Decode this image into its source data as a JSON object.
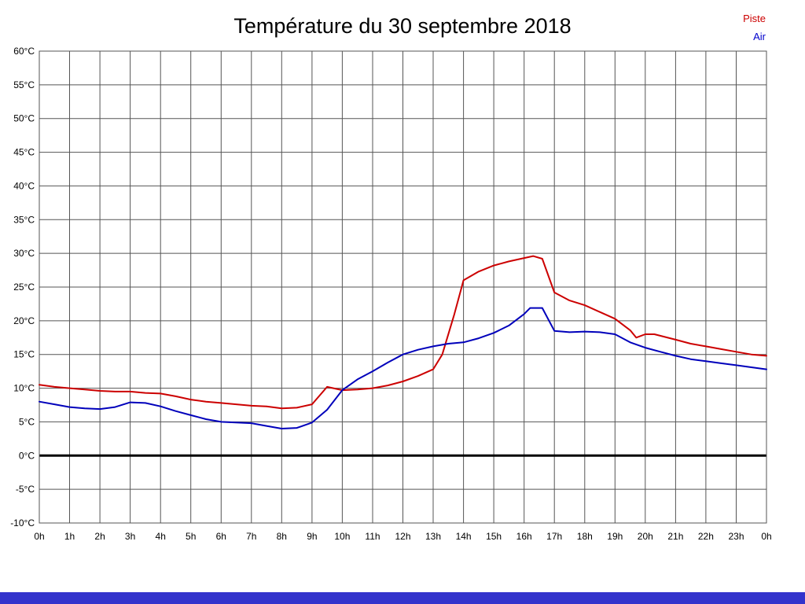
{
  "page": {
    "title": "Température du 30 septembre 2018"
  },
  "legend": [
    {
      "label": "Piste",
      "color": "#cc0000"
    },
    {
      "label": "Air",
      "color": "#0000cc"
    }
  ],
  "colors": {
    "grid": "#555555",
    "zero_line": "#000000",
    "bottom_bar": "#3333cc",
    "text": "#000000"
  },
  "chart_data": {
    "type": "line",
    "title": "Température du 30 septembre 2018",
    "xlabel": "",
    "ylabel": "",
    "x_unit": "hours",
    "xlim": [
      0,
      24
    ],
    "ylim": [
      -10,
      60
    ],
    "y_tick_step": 5,
    "grid": true,
    "zero_line": true,
    "legend_position": "top-right",
    "x_ticks": [
      "0h",
      "1h",
      "2h",
      "3h",
      "4h",
      "5h",
      "6h",
      "7h",
      "8h",
      "9h",
      "10h",
      "11h",
      "12h",
      "13h",
      "14h",
      "15h",
      "16h",
      "17h",
      "18h",
      "19h",
      "20h",
      "21h",
      "22h",
      "23h",
      "0h"
    ],
    "y_ticks": [
      "60°C",
      "55°C",
      "50°C",
      "45°C",
      "40°C",
      "35°C",
      "30°C",
      "25°C",
      "20°C",
      "15°C",
      "10°C",
      "5°C",
      "0°C",
      "-5°C",
      "-10°C"
    ],
    "series": [
      {
        "name": "Piste",
        "color": "#cc0000",
        "x": [
          0,
          0.5,
          1,
          1.5,
          2,
          2.5,
          3,
          3.5,
          4,
          4.5,
          5,
          5.5,
          6,
          6.5,
          7,
          7.5,
          8,
          8.5,
          9,
          9.5,
          10,
          10.5,
          11,
          11.5,
          12,
          12.5,
          13,
          13.3,
          13.7,
          14,
          14.5,
          15,
          15.5,
          16,
          16.3,
          16.6,
          17,
          17.5,
          18,
          18.5,
          19,
          19.5,
          19.7,
          20,
          20.3,
          21,
          21.5,
          22,
          22.5,
          23,
          23.5,
          24
        ],
        "values": [
          10.5,
          10.2,
          10.0,
          9.8,
          9.6,
          9.5,
          9.5,
          9.3,
          9.2,
          8.8,
          8.3,
          8.0,
          7.8,
          7.6,
          7.4,
          7.3,
          7.0,
          7.1,
          7.6,
          10.2,
          9.7,
          9.8,
          10.0,
          10.4,
          11.0,
          11.8,
          12.8,
          15.0,
          21.0,
          26.0,
          27.3,
          28.2,
          28.8,
          29.3,
          29.6,
          29.2,
          24.2,
          23.0,
          22.3,
          21.3,
          20.3,
          18.6,
          17.5,
          18.0,
          18.0,
          17.2,
          16.6,
          16.2,
          15.8,
          15.4,
          15.0,
          14.8
        ]
      },
      {
        "name": "Air",
        "color": "#0000bb",
        "x": [
          0,
          0.5,
          1,
          1.5,
          2,
          2.5,
          3,
          3.5,
          4,
          4.5,
          5,
          5.5,
          6,
          6.5,
          7,
          7.5,
          8,
          8.5,
          9,
          9.5,
          10,
          10.5,
          11,
          11.5,
          12,
          12.5,
          13,
          13.5,
          14,
          14.5,
          15,
          15.5,
          16,
          16.2,
          16.6,
          17,
          17.5,
          18,
          18.5,
          19,
          19.5,
          20,
          20.5,
          21,
          21.5,
          22,
          22.5,
          23,
          23.5,
          24
        ],
        "values": [
          8.0,
          7.6,
          7.2,
          7.0,
          6.9,
          7.2,
          7.9,
          7.8,
          7.3,
          6.6,
          6.0,
          5.4,
          5.0,
          4.9,
          4.8,
          4.4,
          4.0,
          4.1,
          4.9,
          6.8,
          9.7,
          11.3,
          12.5,
          13.8,
          15.0,
          15.7,
          16.2,
          16.6,
          16.8,
          17.4,
          18.2,
          19.3,
          21.0,
          21.9,
          21.9,
          18.5,
          18.3,
          18.4,
          18.3,
          18.0,
          16.8,
          16.0,
          15.4,
          14.8,
          14.3,
          14.0,
          13.7,
          13.4,
          13.1,
          12.8
        ]
      }
    ]
  }
}
